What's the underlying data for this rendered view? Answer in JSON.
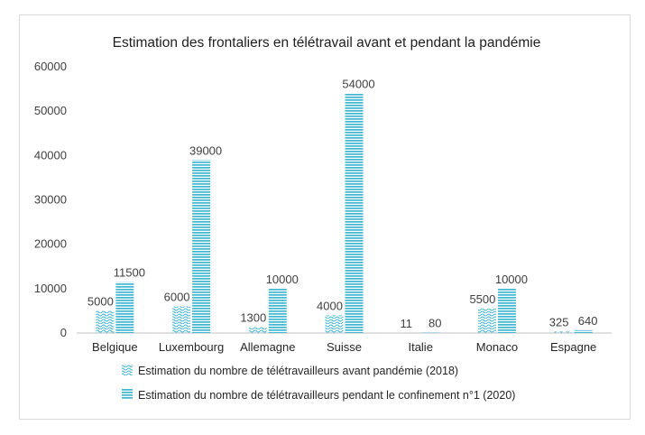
{
  "chart_data": {
    "type": "bar",
    "title": "Estimation des frontaliers en télétravail avant et pendant la pandémie",
    "categories": [
      "Belgique",
      "Luxembourg",
      "Allemagne",
      "Suisse",
      "Italie",
      "Monaco",
      "Espagne"
    ],
    "series": [
      {
        "name": "Estimation du nombre de télétravailleurs avant pandémie (2018)",
        "values": [
          5000,
          6000,
          1300,
          4000,
          11,
          5500,
          325
        ],
        "labels": [
          "5000",
          "6000",
          "1300",
          "4000",
          "11",
          "5500",
          "325"
        ],
        "color": "#3fb7d3",
        "pattern": "wave"
      },
      {
        "name": "Estimation du nombre de télétravailleurs pendant le confinement n°1 (2020)",
        "values": [
          11500,
          39000,
          10000,
          54000,
          80,
          10000,
          640
        ],
        "labels": [
          "11500",
          "39000",
          "10000",
          "54000",
          "80",
          "10000",
          "640"
        ],
        "color": "#3fb7d3",
        "pattern": "horizontal-lines"
      }
    ],
    "ylim": [
      0,
      60000
    ],
    "yticks": [
      "0",
      "10000",
      "20000",
      "30000",
      "40000",
      "50000",
      "60000"
    ],
    "grid": false,
    "legend_position": "bottom"
  }
}
